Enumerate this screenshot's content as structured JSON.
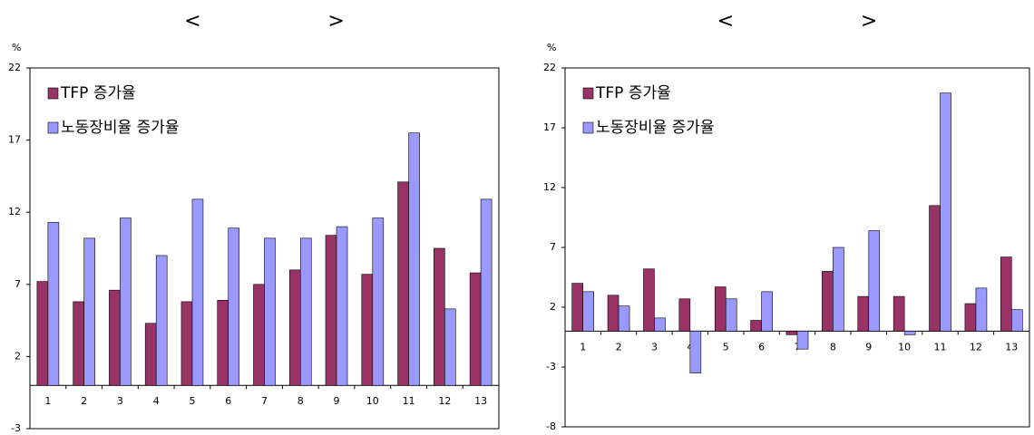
{
  "chart_data": [
    {
      "type": "bar",
      "title": "<                    >",
      "ylabel": "%",
      "categories": [
        "1",
        "2",
        "3",
        "4",
        "5",
        "6",
        "7",
        "8",
        "9",
        "10",
        "11",
        "12",
        "13"
      ],
      "series": [
        {
          "name": "TFP 증가율",
          "color": "#993366",
          "values": [
            7.2,
            5.8,
            6.6,
            4.3,
            5.8,
            5.9,
            7.0,
            8.0,
            10.4,
            7.7,
            14.1,
            9.5,
            7.8
          ]
        },
        {
          "name": "노동장비율 증가율",
          "color": "#9999ff",
          "values": [
            11.3,
            10.2,
            11.6,
            9.0,
            12.9,
            10.9,
            10.2,
            10.2,
            11.0,
            11.6,
            17.5,
            5.3,
            12.9
          ]
        }
      ],
      "ylim": [
        -3,
        22
      ],
      "yticks": [
        -3,
        2,
        7,
        12,
        17,
        22
      ],
      "grid": false,
      "legend": "top-left"
    },
    {
      "type": "bar",
      "title": "<                    >",
      "ylabel": "%",
      "categories": [
        "1",
        "2",
        "3",
        "4",
        "5",
        "6",
        "7",
        "8",
        "9",
        "10",
        "11",
        "12",
        "13"
      ],
      "series": [
        {
          "name": "TFP 증가율",
          "color": "#993366",
          "values": [
            4.0,
            3.0,
            5.2,
            2.7,
            3.7,
            0.9,
            -0.3,
            5.0,
            2.9,
            2.9,
            10.5,
            2.3,
            6.2
          ]
        },
        {
          "name": "노동장비율 증가율",
          "color": "#9999ff",
          "values": [
            3.3,
            2.1,
            1.1,
            -3.5,
            2.7,
            3.3,
            -1.5,
            7.0,
            8.4,
            -0.3,
            19.9,
            3.6,
            1.8
          ]
        }
      ],
      "ylim": [
        -8,
        22
      ],
      "yticks": [
        -8,
        -3,
        2,
        7,
        12,
        17,
        22
      ],
      "grid": false,
      "legend": "top-left"
    }
  ]
}
